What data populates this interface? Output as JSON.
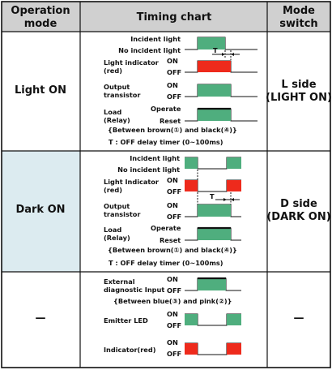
{
  "colors": {
    "header_bg": "#d0d0d0",
    "dark_mode_bg": "#dcebf0",
    "green": "#4fae7e",
    "red": "#ee2a1c",
    "line": "#111111"
  },
  "header": {
    "col1_line1": "Operation",
    "col1_line2": "mode",
    "col2": "Timing chart",
    "col3_line1": "Mode",
    "col3_line2": "switch"
  },
  "rows": {
    "light_on": {
      "mode": "Light ON",
      "switch_line1": "L side",
      "switch_line2": "(LIGHT ON)",
      "incident_light": "Incident light",
      "no_incident_light": "No incident light",
      "indicator_line1": "Light indicator",
      "indicator_line2": "(red)",
      "output_line1": "Output",
      "output_line2": "transistor",
      "load_line1": "Load",
      "load_line2": "(Relay)",
      "on": "ON",
      "off": "OFF",
      "operate": "Operate",
      "reset": "Reset",
      "t_mark": "T",
      "wiring_note": "{Between brown(①) and black(④)}",
      "timer_note": "T : OFF delay timer (0~100ms)"
    },
    "dark_on": {
      "mode": "Dark ON",
      "switch_line1": "D side",
      "switch_line2": "(DARK ON)",
      "incident_light": "Incident light",
      "no_incident_light": "No incident light",
      "indicator_line1": "Light Indicator",
      "indicator_line2": "(red)",
      "output_line1": "Output",
      "output_line2": "transistor",
      "load_line1": "Load",
      "load_line2": "(Relay)",
      "on": "ON",
      "off": "OFF",
      "operate": "Operate",
      "reset": "Reset",
      "t_mark": "T",
      "wiring_note": "{Between brown(①) and black(④)}",
      "timer_note": "T : OFF delay timer (0~100ms)"
    },
    "diagnostic": {
      "mode": "—",
      "switch": "—",
      "ext_line1": "External",
      "ext_line2": "diagnostic Input",
      "wiring_note": "{Between blue(③) and pink(②)}",
      "emitter": "Emitter LED",
      "indicator": "Indicator(red)",
      "on": "ON",
      "off": "OFF"
    }
  }
}
